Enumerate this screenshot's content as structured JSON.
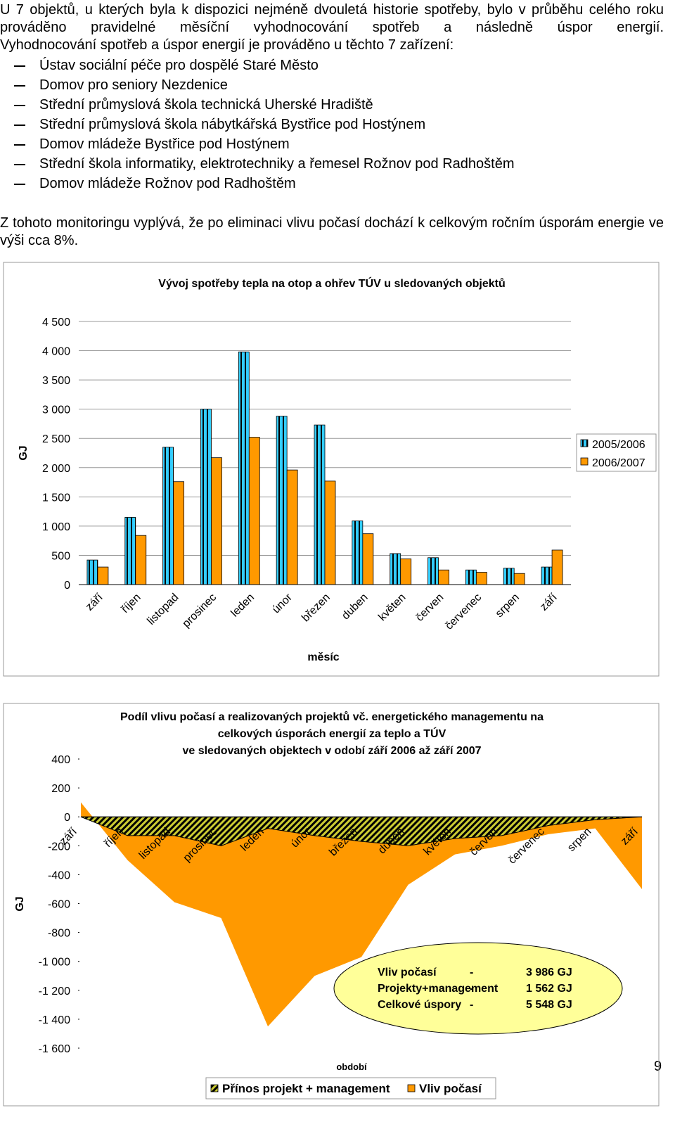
{
  "document": {
    "paragraphs": [
      "U 7 objektů, u kterých byla k dispozici nejméně dvouletá historie spotřeby, bylo v průběhu celého roku prováděno pravidelné měsíční vyhodnocování spotřeb a následně úspor energií.",
      "Vyhodnocování spotřeb a úspor energií je prováděno u těchto 7 zařízení:"
    ],
    "list": [
      "Ústav sociální péče pro dospělé Staré Město",
      "Domov pro seniory Nezdenice",
      "Střední průmyslová škola technická Uherské Hradiště",
      "Střední průmyslová škola nábytkářská Bystřice pod Hostýnem",
      "Domov mládeže Bystřice pod Hostýnem",
      "Střední škola informatiky, elektrotechniky a řemesel Rožnov pod Radhoštěm",
      "Domov mládeže Rožnov pod Radhoštěm"
    ],
    "conclusion": "Z tohoto monitoringu vyplývá, že po eliminaci vlivu počasí dochází k celkovým ročním úsporám energie ve výši cca 8%.",
    "page_number": "9"
  },
  "chart_data": [
    {
      "type": "bar",
      "title": "Vývoj spotřeby tepla na otop a ohřev TÚV u sledovaných objektů",
      "x_label": "měsíc",
      "y_label": "GJ",
      "legend": "right",
      "grid": true,
      "categories": [
        "září",
        "říjen",
        "listopad",
        "prosinec",
        "leden",
        "únor",
        "březen",
        "duben",
        "květen",
        "červen",
        "červenec",
        "srpen",
        "září"
      ],
      "series": [
        {
          "name": "2005/2006",
          "color": "#33ccff",
          "values": [
            420,
            1150,
            2350,
            3000,
            3980,
            2880,
            2730,
            1090,
            530,
            460,
            250,
            280,
            300
          ]
        },
        {
          "name": "2006/2007",
          "color": "#ff9900",
          "values": [
            300,
            840,
            1760,
            2170,
            2520,
            1960,
            1770,
            870,
            440,
            250,
            210,
            190,
            590
          ]
        }
      ],
      "ylim": [
        0,
        4500
      ],
      "yticks": [
        0,
        500,
        {
          "value": 1000,
          "label": "1 000"
        },
        {
          "value": 1500,
          "label": "1 500"
        },
        {
          "value": 2000,
          "label": "2 000"
        },
        {
          "value": 2500,
          "label": "2 500"
        },
        {
          "value": 3000,
          "label": "3 000"
        },
        {
          "value": 3500,
          "label": "3 500"
        },
        {
          "value": 4000,
          "label": "4 000"
        },
        {
          "value": 4500,
          "label": "4 500"
        }
      ]
    },
    {
      "type": "area",
      "title": [
        "Podíl vlivu počasí a realizovaných projektů vč. energetického managementu na",
        "celkových úsporách energií za teplo a TÚV",
        "ve sledovaných objektech v odobí září 2006 až září 2007"
      ],
      "x_label": "období",
      "y_label": "GJ",
      "legend": "bottom",
      "categories": [
        "září",
        "říjen",
        "listopad",
        "prosinec",
        "leden",
        "únor",
        "březen",
        "duben",
        "květen",
        "červen",
        "červenec",
        "srpen",
        "září"
      ],
      "series": [
        {
          "name": "Vliv počasí",
          "color": "#ff9900",
          "values": [
            100,
            -300,
            -590,
            -700,
            -1450,
            -1100,
            -970,
            -470,
            -260,
            -200,
            -120,
            -80,
            -500
          ]
        },
        {
          "name": "Přínos projekt + management",
          "color": "#cccc33",
          "values": [
            0,
            -130,
            -130,
            -200,
            -80,
            -130,
            -170,
            -200,
            -150,
            -130,
            -60,
            -20,
            0
          ]
        }
      ],
      "ylim": [
        -1600,
        400
      ],
      "yticks": [
        {
          "value": -1600,
          "label": "-1 600"
        },
        {
          "value": -1400,
          "label": "-1 400"
        },
        {
          "value": -1200,
          "label": "-1 200"
        },
        {
          "value": -1000,
          "label": "-1 000"
        },
        -800,
        -600,
        -400,
        -200,
        0,
        200,
        400
      ],
      "annotations": [
        [
          "Vliv počasí",
          "-",
          "3 986 GJ"
        ],
        [
          "Projekty+management",
          "-",
          "1 562 GJ"
        ],
        [
          "Celkové úspory",
          "-",
          "5 548 GJ"
        ]
      ]
    }
  ]
}
